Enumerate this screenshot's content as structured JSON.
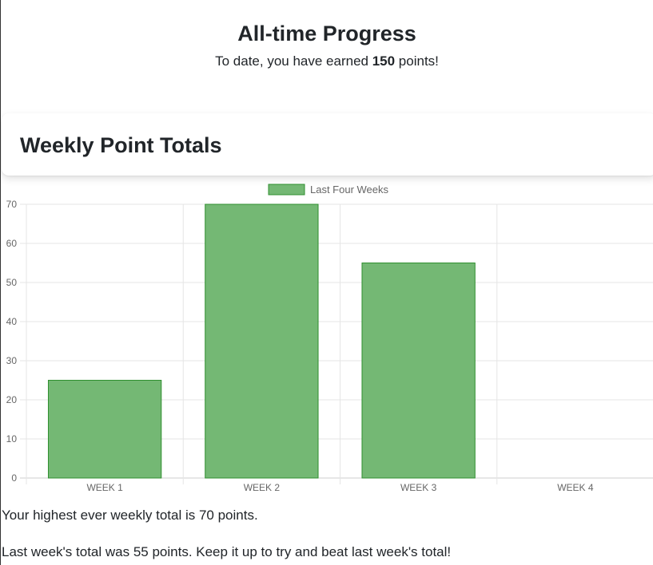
{
  "progress": {
    "title": "All-time Progress",
    "text_before": "To date, you have earned ",
    "points": "150",
    "text_after": " points!"
  },
  "card": {
    "title": "Weekly Point Totals"
  },
  "summary": {
    "highest": "Your highest ever weekly total is 70 points.",
    "last_week": "Last week's total was 55 points. Keep it up to try and beat last week's total!"
  },
  "colors": {
    "bar_fill": "#74b874",
    "bar_border": "#2f8f2f",
    "grid": "#e5e5e5",
    "tick_text": "#666666"
  },
  "chart_data": {
    "type": "bar",
    "categories": [
      "WEEK 1",
      "WEEK 2",
      "WEEK 3",
      "WEEK 4"
    ],
    "series": [
      {
        "name": "Last Four Weeks",
        "values": [
          25,
          70,
          55,
          0
        ]
      }
    ],
    "ylim": [
      0,
      70
    ],
    "yticks": [
      0,
      10,
      20,
      30,
      40,
      50,
      60,
      70
    ],
    "grid": true,
    "legend": "top-center"
  }
}
